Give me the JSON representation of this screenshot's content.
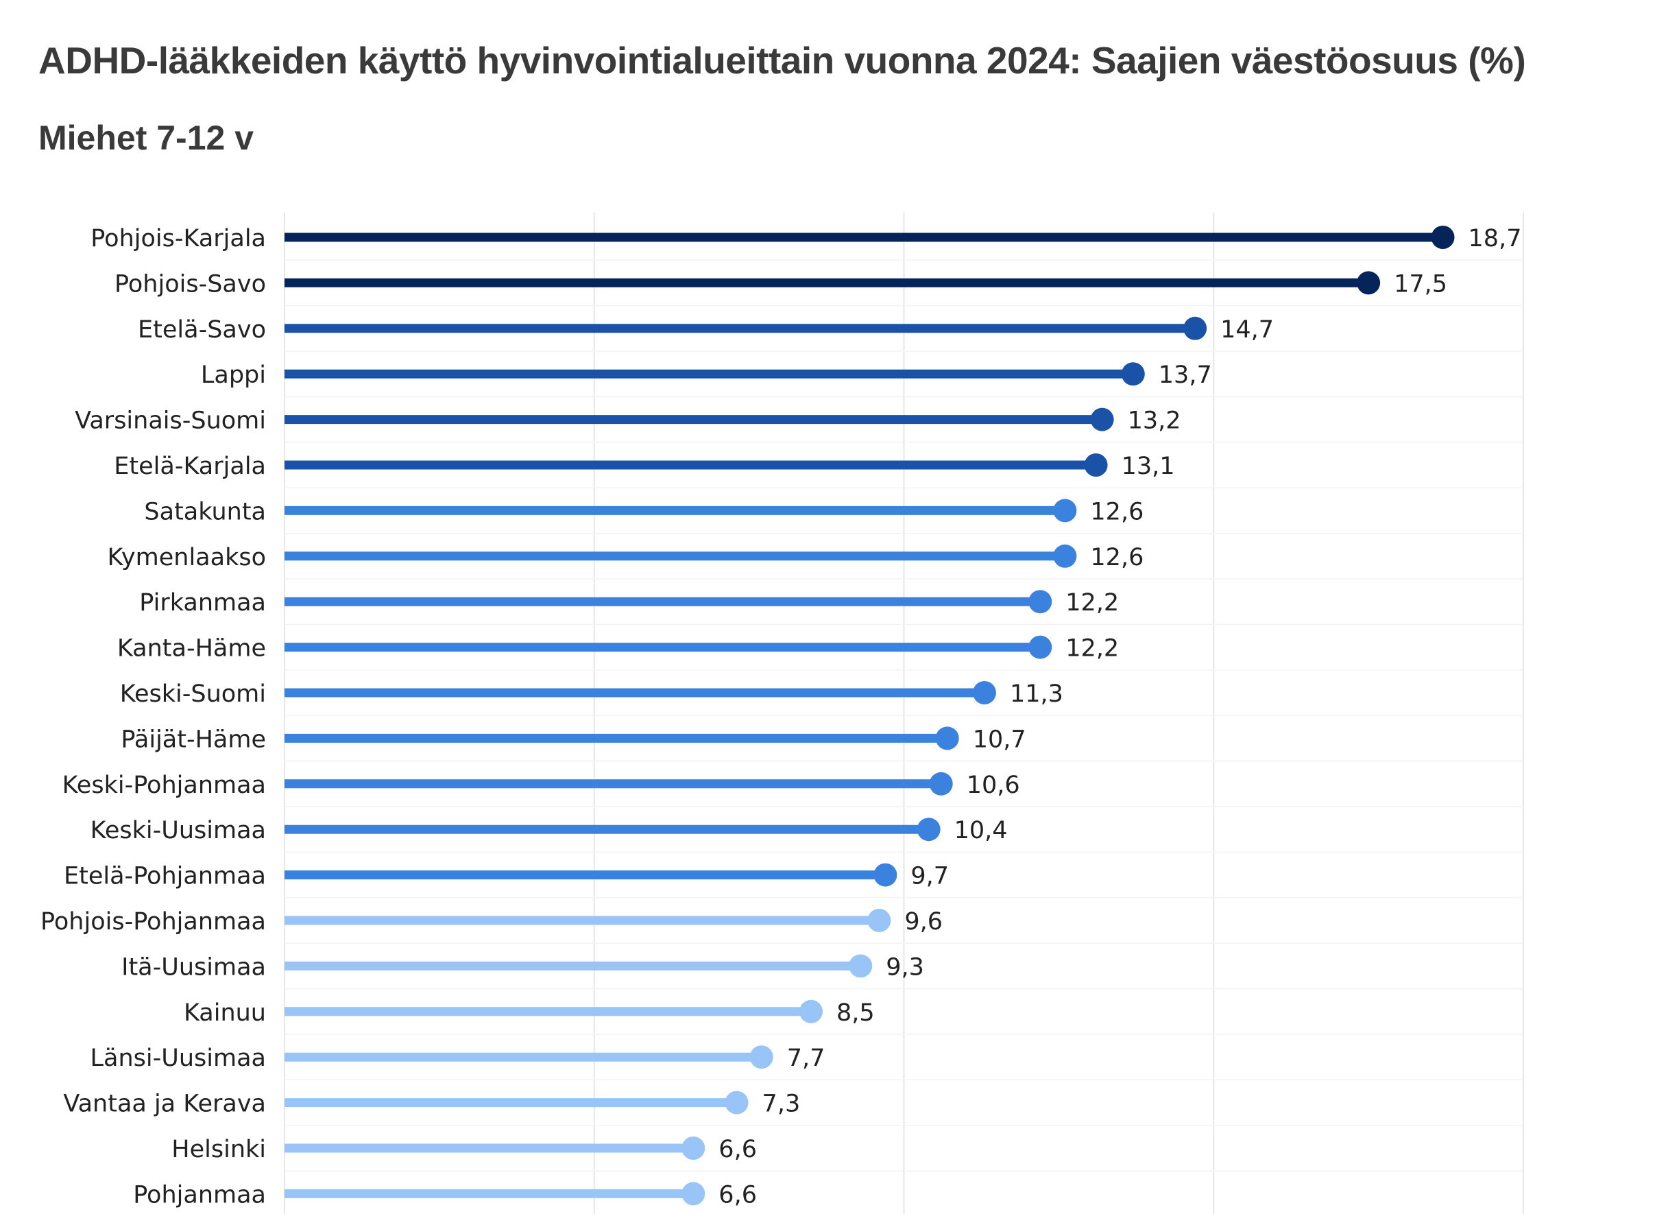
{
  "title": "ADHD-lääkkeiden käyttö hyvinvointialueittain vuonna 2024: Saajien väestöosuus (%)",
  "subtitle": "Miehet 7-12 v",
  "colors": {
    "dark": "#04245a",
    "medium": "#1a52a8",
    "light_medium": "#3b82de",
    "light": "#99c4f8",
    "grid": "#e6e6e6"
  },
  "chart_data": {
    "type": "lollipop",
    "orientation": "horizontal",
    "xlim": [
      0,
      20
    ],
    "grid": true,
    "categories": [
      "Pohjois-Karjala",
      "Pohjois-Savo",
      "Etelä-Savo",
      "Lappi",
      "Varsinais-Suomi",
      "Etelä-Karjala",
      "Satakunta",
      "Kymenlaakso",
      "Pirkanmaa",
      "Kanta-Häme",
      "Keski-Suomi",
      "Päijät-Häme",
      "Keski-Pohjanmaa",
      "Keski-Uusimaa",
      "Etelä-Pohjanmaa",
      "Pohjois-Pohjanmaa",
      "Itä-Uusimaa",
      "Kainuu",
      "Länsi-Uusimaa",
      "Vantaa ja Kerava",
      "Helsinki",
      "Pohjanmaa"
    ],
    "values": [
      18.7,
      17.5,
      14.7,
      13.7,
      13.2,
      13.1,
      12.6,
      12.6,
      12.2,
      12.2,
      11.3,
      10.7,
      10.6,
      10.4,
      9.7,
      9.6,
      9.3,
      8.5,
      7.7,
      7.3,
      6.6,
      6.6
    ],
    "value_labels": [
      "18,7",
      "17,5",
      "14,7",
      "13,7",
      "13,2",
      "13,1",
      "12,6",
      "12,6",
      "12,2",
      "12,2",
      "11,3",
      "10,7",
      "10,6",
      "10,4",
      "9,7",
      "9,6",
      "9,3",
      "8,5",
      "7,7",
      "7,3",
      "6,6",
      "6,6"
    ],
    "color_groups": [
      "dark",
      "dark",
      "medium",
      "medium",
      "medium",
      "medium",
      "light_medium",
      "light_medium",
      "light_medium",
      "light_medium",
      "light_medium",
      "light_medium",
      "light_medium",
      "light_medium",
      "light_medium",
      "light",
      "light",
      "light",
      "light",
      "light",
      "light",
      "light"
    ]
  }
}
